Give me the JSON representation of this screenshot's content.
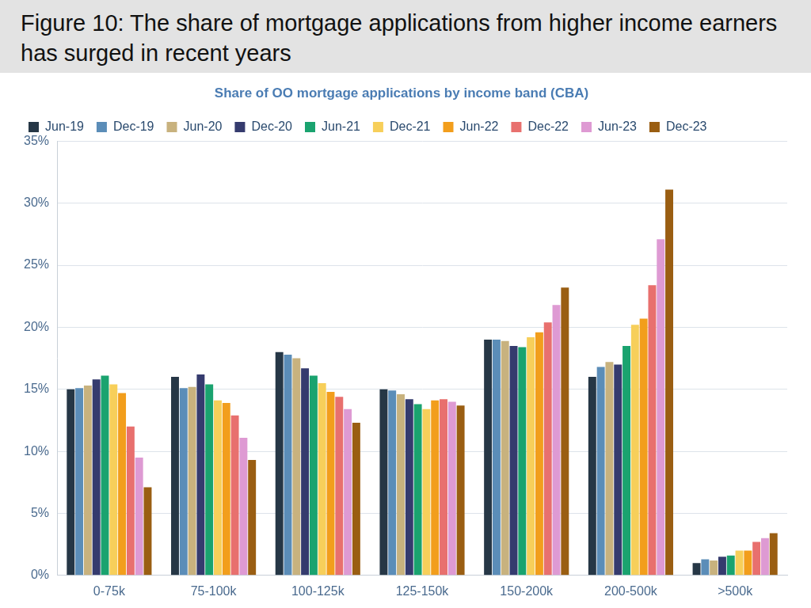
{
  "chart_data": {
    "type": "bar",
    "title": "Figure 10: The share of mortgage applications from higher income earners has surged in recent years",
    "subtitle": "Share of OO mortgage applications by income band (CBA)",
    "categories": [
      "0-75k",
      "75-100k",
      "100-125k",
      "125-150k",
      "150-200k",
      "200-500k",
      ">500k"
    ],
    "series": [
      {
        "name": "Jun-19",
        "color": "#263746",
        "values": [
          15.0,
          16.0,
          18.0,
          15.0,
          19.0,
          16.0,
          1.0
        ]
      },
      {
        "name": "Dec-19",
        "color": "#5b8db8",
        "values": [
          15.1,
          15.1,
          17.8,
          14.9,
          19.0,
          16.8,
          1.3
        ]
      },
      {
        "name": "Jun-20",
        "color": "#c8b27e",
        "values": [
          15.3,
          15.2,
          17.5,
          14.6,
          18.9,
          17.2,
          1.2
        ]
      },
      {
        "name": "Dec-20",
        "color": "#353b6e",
        "values": [
          15.8,
          16.2,
          16.7,
          14.2,
          18.5,
          17.0,
          1.5
        ]
      },
      {
        "name": "Jun-21",
        "color": "#1aa36f",
        "values": [
          16.1,
          15.4,
          16.1,
          13.8,
          18.4,
          18.5,
          1.6
        ]
      },
      {
        "name": "Dec-21",
        "color": "#f7cf5a",
        "values": [
          15.4,
          14.1,
          15.5,
          13.4,
          19.2,
          20.2,
          2.0
        ]
      },
      {
        "name": "Jun-22",
        "color": "#f29e1c",
        "values": [
          14.7,
          13.9,
          14.8,
          14.1,
          19.6,
          20.7,
          2.0
        ]
      },
      {
        "name": "Dec-22",
        "color": "#e8706e",
        "values": [
          12.0,
          12.9,
          14.4,
          14.2,
          20.4,
          23.4,
          2.7
        ]
      },
      {
        "name": "Jun-23",
        "color": "#de9ad3",
        "values": [
          9.5,
          11.1,
          13.4,
          14.0,
          21.8,
          27.1,
          3.0
        ]
      },
      {
        "name": "Dec-23",
        "color": "#9a5e12",
        "values": [
          7.1,
          9.3,
          12.3,
          13.7,
          23.2,
          31.1,
          3.4
        ]
      }
    ],
    "ylim": [
      0,
      35
    ],
    "yticks": [
      {
        "value": 0,
        "label": "0%"
      },
      {
        "value": 5,
        "label": "5%"
      },
      {
        "value": 10,
        "label": "10%"
      },
      {
        "value": 15,
        "label": "15%"
      },
      {
        "value": 20,
        "label": "20%"
      },
      {
        "value": 25,
        "label": "25%"
      },
      {
        "value": 30,
        "label": "30%"
      },
      {
        "value": 35,
        "label": "35%"
      }
    ],
    "grid": true,
    "legend": "top-left"
  }
}
